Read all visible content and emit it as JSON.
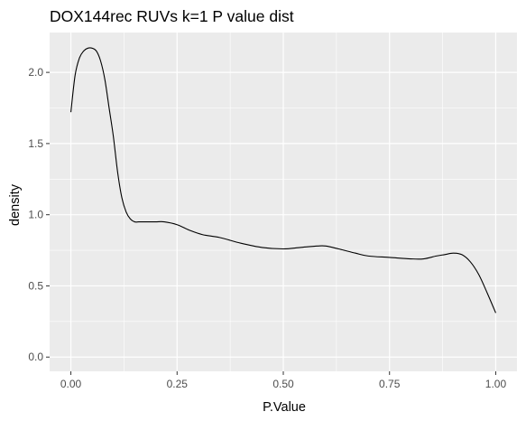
{
  "chart_data": {
    "type": "line",
    "title": "DOX144rec RUVs k=1 P value dist",
    "xlabel": "P.Value",
    "ylabel": "density",
    "xlim": [
      -0.05,
      1.05
    ],
    "ylim": [
      -0.1,
      2.28
    ],
    "x_ticks": [
      0.0,
      0.25,
      0.5,
      0.75,
      1.0
    ],
    "x_tick_labels": [
      "0.00",
      "0.25",
      "0.50",
      "0.75",
      "1.00"
    ],
    "y_ticks": [
      0.0,
      0.5,
      1.0,
      1.5,
      2.0
    ],
    "y_tick_labels": [
      "0.0",
      "0.5",
      "1.0",
      "1.5",
      "2.0"
    ],
    "grid": true,
    "colors": {
      "panel_background": "#ebebeb",
      "grid_major": "#ffffff",
      "line": "#000000"
    },
    "series": [
      {
        "x": [
          0.0,
          0.01,
          0.02,
          0.03,
          0.04,
          0.05,
          0.06,
          0.07,
          0.08,
          0.09,
          0.1,
          0.11,
          0.12,
          0.13,
          0.14,
          0.15,
          0.16,
          0.17,
          0.18,
          0.2,
          0.22,
          0.25,
          0.28,
          0.31,
          0.35,
          0.4,
          0.45,
          0.5,
          0.54,
          0.58,
          0.6,
          0.63,
          0.67,
          0.7,
          0.75,
          0.8,
          0.83,
          0.86,
          0.88,
          0.9,
          0.92,
          0.94,
          0.96,
          0.98,
          1.0
        ],
        "y": [
          1.72,
          1.98,
          2.1,
          2.15,
          2.17,
          2.17,
          2.15,
          2.08,
          1.95,
          1.75,
          1.55,
          1.3,
          1.12,
          1.02,
          0.97,
          0.95,
          0.95,
          0.95,
          0.95,
          0.95,
          0.95,
          0.93,
          0.89,
          0.86,
          0.84,
          0.8,
          0.77,
          0.76,
          0.77,
          0.78,
          0.78,
          0.76,
          0.73,
          0.71,
          0.7,
          0.69,
          0.69,
          0.71,
          0.72,
          0.73,
          0.72,
          0.67,
          0.58,
          0.45,
          0.31
        ]
      }
    ]
  }
}
